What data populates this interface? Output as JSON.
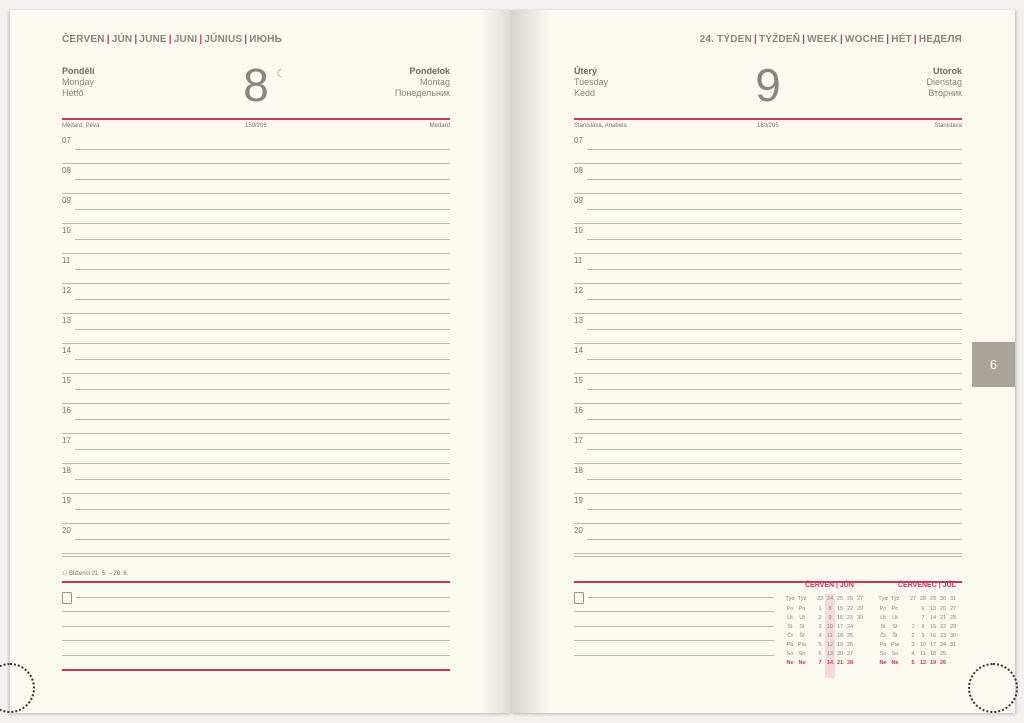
{
  "left": {
    "month_header": [
      "ČERVEN",
      "JÚN",
      "JUNE",
      "JUNI",
      "JÚNIUS",
      "ИЮНЬ"
    ],
    "day_left": [
      "Pondělí",
      "Monday",
      "Hétfő"
    ],
    "day_right": [
      "Pondelok",
      "Montag",
      "Понедельник"
    ],
    "date": "8",
    "moon_icon": "☾",
    "names_left": "Medard, Pěva",
    "day_count": "159/206",
    "names_right": "Medard",
    "zodiac": "Blíženci 21. 5. – 20. 6."
  },
  "right": {
    "week_header": [
      "24. TÝDEN",
      "TÝŽDEŇ",
      "WEEK",
      "WOCHE",
      "HÉT",
      "НЕДЕЛЯ"
    ],
    "day_left": [
      "Úterý",
      "Tuesday",
      "Kedd"
    ],
    "day_right": [
      "Utorok",
      "Dienstag",
      "Вторник"
    ],
    "date": "9",
    "names_left": "Stanislava, Anabela",
    "day_count": "160/205",
    "names_right": "Stanislava"
  },
  "hours": [
    "07",
    "08",
    "09",
    "10",
    "11",
    "12",
    "13",
    "14",
    "15",
    "16",
    "17",
    "18",
    "19",
    "20"
  ],
  "tab": "6",
  "colors": {
    "accent": "#c8385e",
    "page": "#fcf9f1",
    "tab": "#a9a39b"
  },
  "mini_calendars": [
    {
      "title": "ČERVEN | JÚN",
      "week_label": [
        "Týd",
        "Týž"
      ],
      "weeks": [
        "23",
        "24",
        "25",
        "26",
        "27"
      ],
      "highlight_week": "24",
      "rows": [
        [
          "Po",
          "Po",
          "1",
          "8",
          "15",
          "22",
          "29"
        ],
        [
          "Út",
          "Ut",
          "2",
          "9",
          "16",
          "23",
          "30"
        ],
        [
          "St",
          "St",
          "3",
          "10",
          "17",
          "24",
          ""
        ],
        [
          "Čt",
          "Št",
          "4",
          "11",
          "18",
          "25",
          ""
        ],
        [
          "Pá",
          "Pia",
          "5",
          "12",
          "19",
          "26",
          ""
        ],
        [
          "So",
          "So",
          "6",
          "13",
          "20",
          "27",
          ""
        ],
        [
          "Ne",
          "Ne",
          "7",
          "14",
          "21",
          "28",
          ""
        ]
      ]
    },
    {
      "title": "ČERVENEC | JÚL",
      "week_label": [
        "Týd",
        "Týž"
      ],
      "weeks": [
        "27",
        "28",
        "29",
        "30",
        "31"
      ],
      "rows": [
        [
          "Po",
          "Po",
          "",
          "6",
          "13",
          "20",
          "27"
        ],
        [
          "Út",
          "Ut",
          "",
          "7",
          "14",
          "21",
          "28"
        ],
        [
          "St",
          "St",
          "1",
          "8",
          "15",
          "22",
          "29"
        ],
        [
          "Čt",
          "Št",
          "2",
          "9",
          "16",
          "23",
          "30"
        ],
        [
          "Pá",
          "Pia",
          "3",
          "10",
          "17",
          "24",
          "31"
        ],
        [
          "So",
          "So",
          "4",
          "11",
          "18",
          "25",
          ""
        ],
        [
          "Ne",
          "Ne",
          "5",
          "12",
          "19",
          "26",
          ""
        ]
      ]
    }
  ]
}
